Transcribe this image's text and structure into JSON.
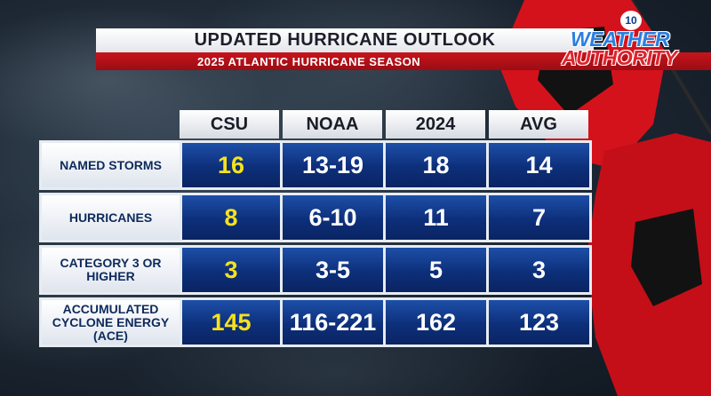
{
  "header": {
    "title": "UPDATED HURRICANE OUTLOOK",
    "subtitle": "2025 ATLANTIC HURRICANE SEASON"
  },
  "logo": {
    "channel": "10",
    "line1": "WEATHER",
    "line2": "AUTHORITY"
  },
  "table": {
    "columns": [
      "CSU",
      "NOAA",
      "2024",
      "AVG"
    ],
    "rows": [
      {
        "label": "NAMED STORMS",
        "values": [
          "16",
          "13-19",
          "18",
          "14"
        ]
      },
      {
        "label": "HURRICANES",
        "values": [
          "8",
          "6-10",
          "11",
          "7"
        ]
      },
      {
        "label": "CATEGORY 3 OR HIGHER",
        "values": [
          "3",
          "3-5",
          "5",
          "3"
        ]
      },
      {
        "label": "ACCUMULATED CYCLONE ENERGY (ACE)",
        "values": [
          "145",
          "116-221",
          "162",
          "123"
        ]
      }
    ]
  },
  "colors": {
    "highlight_value": "#f6e21d",
    "cell_blue": "#0d2f7a",
    "subtitle_red": "#c8141c",
    "flag_red": "#d4121b"
  }
}
